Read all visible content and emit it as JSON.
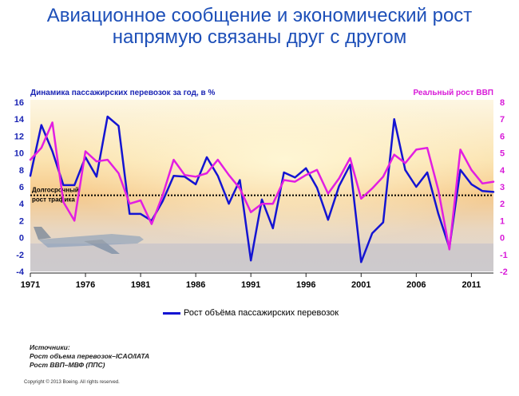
{
  "title": {
    "line1": "Авиационное сообщение и экономический рост",
    "line2": "напрямую связаны друг с другом"
  },
  "chart_data": {
    "type": "line",
    "y_left_label": "Динамика пассажирских перевозок за год, в %",
    "y_right_label": "Реальный рост ВВП",
    "x_ticks": [
      "1971",
      "1976",
      "1981",
      "1986",
      "1991",
      "1996",
      "2001",
      "2006",
      "2011"
    ],
    "y_left_ticks": [
      "16",
      "14",
      "12",
      "10",
      "8",
      "6",
      "4",
      "2",
      "0",
      "-2",
      "-4"
    ],
    "y_right_ticks": [
      "8",
      "7",
      "6",
      "5",
      "4",
      "3",
      "2",
      "1",
      "0",
      "-1",
      "-2"
    ],
    "ylim_left": [
      -4,
      16
    ],
    "ylim_right": [
      -2,
      8
    ],
    "x_range": [
      1971,
      2013
    ],
    "reference_line": {
      "label_line1": "Долгосрочный",
      "label_line2": "рост трафика",
      "value": 5
    },
    "series": [
      {
        "name": "Рост объёма пассажирских перевозок",
        "axis": "left",
        "color": "#1414d2",
        "x": [
          1971,
          1972,
          1973,
          1974,
          1975,
          1976,
          1977,
          1978,
          1979,
          1980,
          1981,
          1982,
          1983,
          1984,
          1985,
          1986,
          1987,
          1988,
          1989,
          1990,
          1991,
          1992,
          1993,
          1994,
          1995,
          1996,
          1997,
          1998,
          1999,
          2000,
          2001,
          2002,
          2003,
          2004,
          2005,
          2006,
          2007,
          2008,
          2009,
          2010,
          2011,
          2012,
          2013
        ],
        "values": [
          7.3,
          13.3,
          10.2,
          6.2,
          6.2,
          9.5,
          7.2,
          14.3,
          13.2,
          2.8,
          2.8,
          2.0,
          4.3,
          7.3,
          7.2,
          6.3,
          9.5,
          7.3,
          4.0,
          6.8,
          -2.7,
          4.5,
          1.1,
          7.7,
          7.1,
          8.2,
          5.9,
          2.1,
          6.1,
          8.6,
          -2.9,
          0.5,
          1.8,
          14.0,
          8.0,
          6.0,
          7.7,
          2.8,
          -1.2,
          8.0,
          6.3,
          5.5,
          5.4
        ]
      },
      {
        "name": "Реальный рост ВВП",
        "axis": "right",
        "color": "#e21ee2",
        "x": [
          1971,
          1972,
          1973,
          1974,
          1975,
          1976,
          1977,
          1978,
          1979,
          1980,
          1981,
          1982,
          1983,
          1984,
          1985,
          1986,
          1987,
          1988,
          1989,
          1990,
          1991,
          1992,
          1993,
          1994,
          1995,
          1996,
          1997,
          1998,
          1999,
          2000,
          2001,
          2002,
          2003,
          2004,
          2005,
          2006,
          2007,
          2008,
          2009,
          2010,
          2011,
          2012,
          2013
        ],
        "values": [
          4.6,
          5.3,
          6.8,
          2.1,
          1.0,
          5.1,
          4.5,
          4.6,
          3.8,
          2.0,
          2.2,
          0.8,
          2.5,
          4.6,
          3.7,
          3.6,
          3.8,
          4.6,
          3.7,
          2.9,
          1.5,
          2.0,
          2.0,
          3.4,
          3.3,
          3.7,
          4.0,
          2.6,
          3.5,
          4.7,
          2.3,
          2.9,
          3.6,
          4.9,
          4.4,
          5.2,
          5.3,
          2.8,
          -0.7,
          5.2,
          4.0,
          3.2,
          3.3
        ]
      }
    ]
  },
  "legend": {
    "label": "Рост объёма пассажирских перевозок"
  },
  "sources": {
    "heading": "Источники:",
    "line1": "Рост объема перевозок–ICAO/IATA",
    "line2": "Рост ВВП–МВФ (ППС)"
  },
  "copyright": "Copyright © 2013 Boeing. All rights reserved."
}
